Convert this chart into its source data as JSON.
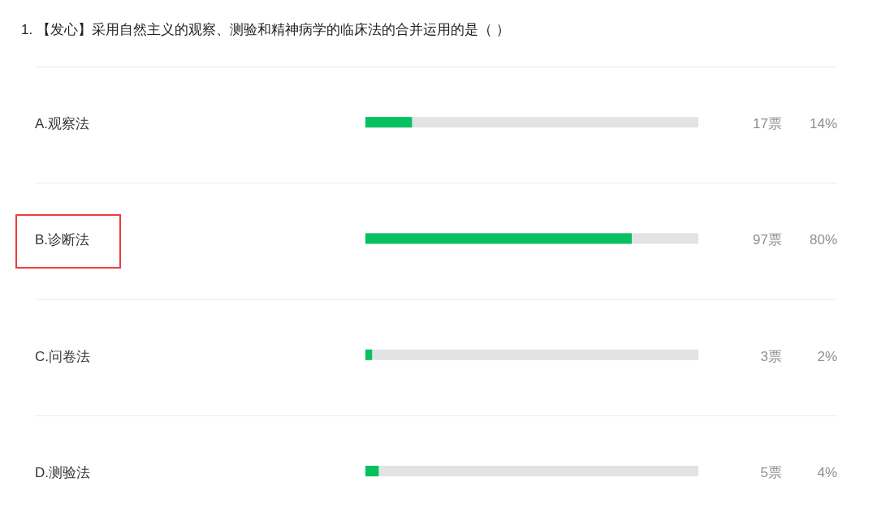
{
  "chart_data": {
    "type": "bar",
    "orientation": "horizontal",
    "title": "1. 【发心】采用自然主义的观察、测验和精神病学的临床法的合并运用的是（ ）",
    "categories": [
      "A.观察法",
      "B.诊断法",
      "C.问卷法",
      "D.测验法"
    ],
    "values": [
      14,
      80,
      2,
      4
    ],
    "color": "#07c160",
    "xlim": [
      0,
      100
    ],
    "tick_labels": "y",
    "value_labels": [
      "14%",
      "80%",
      "2%",
      "4%"
    ],
    "annotations": [
      "17票",
      "97票",
      "3票",
      "5票"
    ]
  }
}
